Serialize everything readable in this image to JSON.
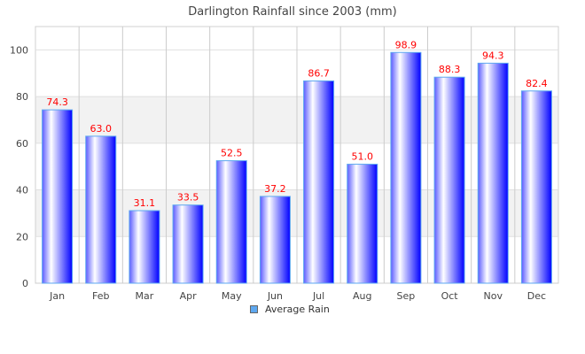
{
  "chart_data": {
    "type": "bar",
    "title": "Darlington Rainfall since 2003 (mm)",
    "categories": [
      "Jan",
      "Feb",
      "Mar",
      "Apr",
      "May",
      "Jun",
      "Jul",
      "Aug",
      "Sep",
      "Oct",
      "Nov",
      "Dec"
    ],
    "series": [
      {
        "name": "Average Rain",
        "values": [
          74.3,
          63.0,
          31.1,
          33.5,
          52.5,
          37.2,
          86.7,
          51.0,
          98.9,
          88.3,
          94.3,
          82.4
        ]
      }
    ],
    "data_labels": [
      "74.3",
      "63.0",
      "31.1",
      "33.5",
      "52.5",
      "37.2",
      "86.7",
      "51.0",
      "98.9",
      "88.3",
      "94.3",
      "82.4"
    ],
    "ylim": [
      0,
      110
    ],
    "yticks": [
      0,
      20,
      40,
      60,
      80,
      100
    ],
    "xlabel": "",
    "ylabel": "",
    "grid": true,
    "legend_position": "bottom",
    "colors": {
      "bar_dark": "#0000ff",
      "bar_light": "#ffffff",
      "bar_edge": "#5ea8f0",
      "label": "#ff0000",
      "band": "#f2f2f2"
    }
  }
}
